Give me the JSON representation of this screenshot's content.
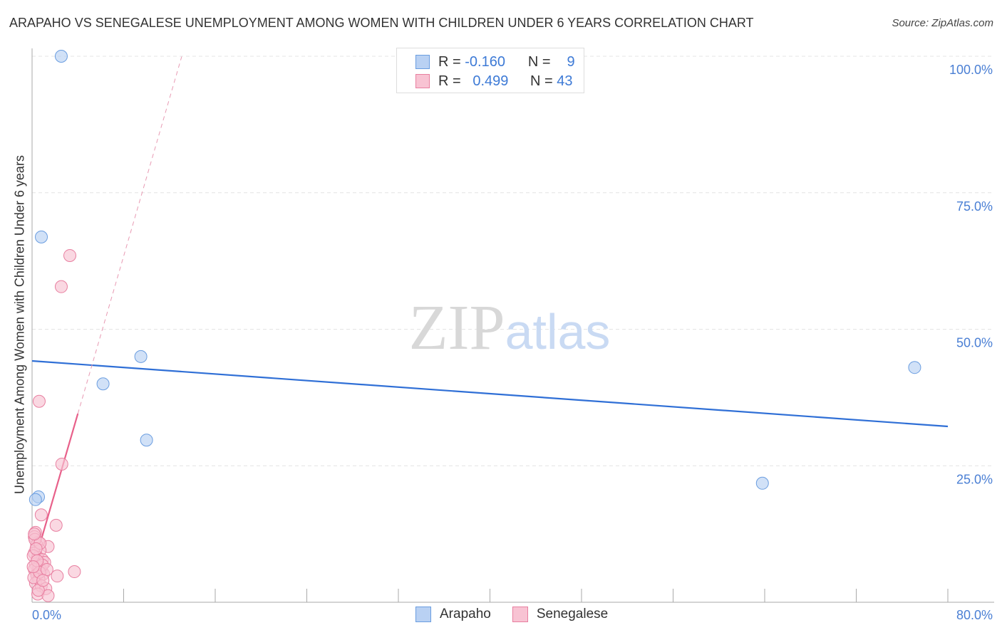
{
  "title": "ARAPAHO VS SENEGALESE UNEMPLOYMENT AMONG WOMEN WITH CHILDREN UNDER 6 YEARS CORRELATION CHART",
  "source": "Source: ZipAtlas.com",
  "watermark": "ZIPatlas",
  "legend": {
    "rows": [
      {
        "r_label": "R =",
        "r": "-0.160",
        "n_label": "N =",
        "n": "9"
      },
      {
        "r_label": "R =",
        "r": "0.499",
        "n_label": "N =",
        "n": "43"
      }
    ]
  },
  "chart_data": {
    "type": "scatter",
    "title": "ARAPAHO VS SENEGALESE UNEMPLOYMENT AMONG WOMEN WITH CHILDREN UNDER 6 YEARS CORRELATION CHART",
    "xlabel": "",
    "ylabel": "Unemployment Among Women with Children Under 6 years",
    "xlim": [
      0,
      80
    ],
    "ylim": [
      0,
      100
    ],
    "x_tick_labels": [
      "0.0%",
      "80.0%"
    ],
    "y_ticks": [
      {
        "v": 100,
        "label": "100.0%"
      },
      {
        "v": 75,
        "label": "75.0%"
      },
      {
        "v": 50,
        "label": "50.0%"
      },
      {
        "v": 25,
        "label": "25.0%"
      }
    ],
    "series": [
      {
        "name": "Arapaho",
        "color": "#6a9de0",
        "fill": "#b9d1f3",
        "points": [
          [
            2.55,
            100
          ],
          [
            0.81,
            66.9
          ],
          [
            9.5,
            45.0
          ],
          [
            6.2,
            40.0
          ],
          [
            10.0,
            29.7
          ],
          [
            0.56,
            19.3
          ],
          [
            63.8,
            21.8
          ],
          [
            77.1,
            43.0
          ],
          [
            0.3,
            18.8
          ]
        ],
        "trend": {
          "x0": 0,
          "y0": 44.2,
          "x1": 80,
          "y1": 32.2,
          "color": "#2f6fd6"
        }
      },
      {
        "name": "Senegalese",
        "color": "#e87fa0",
        "fill": "#f8c3d3",
        "points": [
          [
            3.3,
            63.5
          ],
          [
            2.55,
            57.8
          ],
          [
            0.62,
            36.8
          ],
          [
            2.6,
            25.3
          ],
          [
            0.8,
            16.0
          ],
          [
            2.1,
            14.1
          ],
          [
            0.3,
            12.8
          ],
          [
            0.2,
            12.0
          ],
          [
            1.4,
            10.2
          ],
          [
            0.56,
            11.0
          ],
          [
            0.4,
            10.5
          ],
          [
            0.7,
            9.5
          ],
          [
            0.2,
            9.0
          ],
          [
            0.5,
            8.2
          ],
          [
            0.9,
            7.8
          ],
          [
            1.1,
            7.3
          ],
          [
            0.3,
            7.0
          ],
          [
            0.6,
            6.5
          ],
          [
            0.2,
            6.0
          ],
          [
            0.8,
            5.8
          ],
          [
            1.0,
            5.2
          ],
          [
            0.4,
            5.0
          ],
          [
            3.7,
            5.6
          ],
          [
            2.2,
            4.8
          ],
          [
            0.6,
            4.2
          ],
          [
            0.3,
            3.5
          ],
          [
            0.8,
            3.0
          ],
          [
            1.2,
            2.5
          ],
          [
            0.5,
            1.5
          ],
          [
            1.4,
            1.2
          ],
          [
            0.1,
            8.5
          ],
          [
            0.25,
            11.5
          ],
          [
            0.7,
            10.8
          ],
          [
            0.15,
            4.5
          ],
          [
            0.9,
            6.8
          ],
          [
            0.45,
            7.6
          ],
          [
            0.35,
            9.8
          ],
          [
            0.65,
            5.5
          ],
          [
            1.3,
            6.0
          ],
          [
            0.1,
            6.5
          ],
          [
            0.55,
            2.2
          ],
          [
            0.95,
            4.0
          ],
          [
            0.2,
            12.5
          ]
        ],
        "trend": {
          "x0": 0,
          "y0": 5.7,
          "x_solid_end": 4.0,
          "x1": 13.07,
          "slope": 7.21,
          "color": "#e8608a"
        }
      }
    ],
    "grid": true,
    "legend_placement": "bottom-center"
  }
}
